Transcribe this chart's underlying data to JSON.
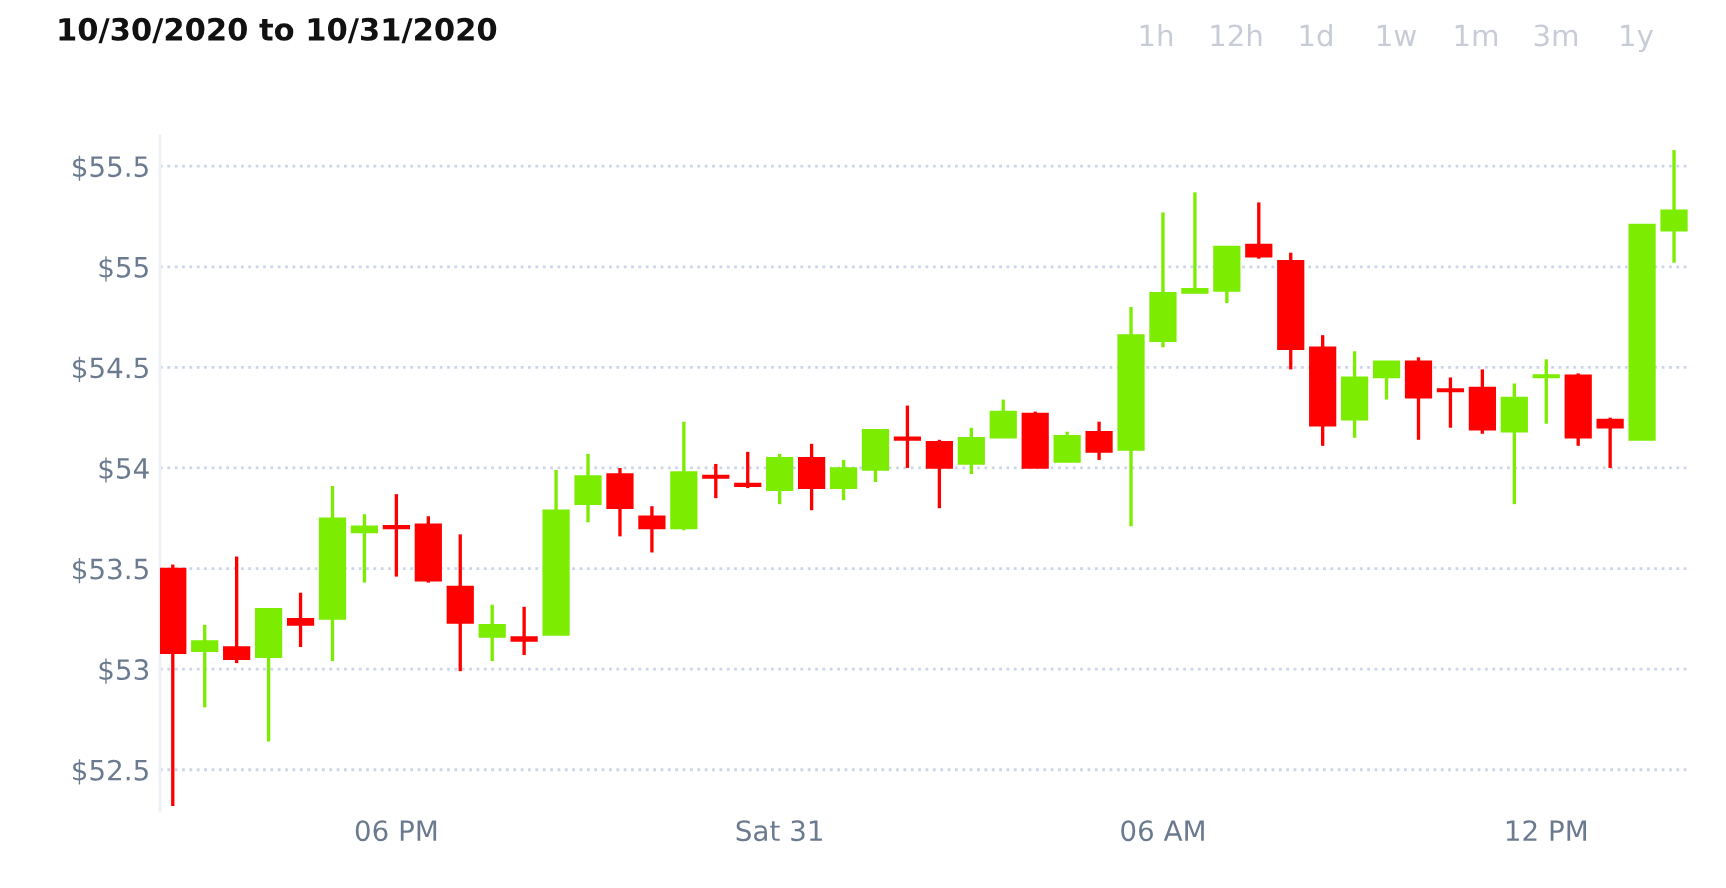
{
  "chart_data": {
    "type": "candlestick",
    "title": "10/30/2020 to 10/31/2020",
    "annotations": [
      "1h",
      "12h",
      "1d",
      "1w",
      "1m",
      "3m",
      "1y"
    ],
    "x": [
      "2020-10-30T14:30",
      "2020-10-30T15:00",
      "2020-10-30T15:30",
      "2020-10-30T16:00",
      "2020-10-30T16:30",
      "2020-10-30T17:00",
      "2020-10-30T17:30",
      "2020-10-30T18:00",
      "2020-10-30T18:30",
      "2020-10-30T19:00",
      "2020-10-30T19:30",
      "2020-10-30T20:00",
      "2020-10-30T20:30",
      "2020-10-30T21:00",
      "2020-10-30T21:30",
      "2020-10-30T22:00",
      "2020-10-30T22:30",
      "2020-10-30T23:00",
      "2020-10-30T23:30",
      "2020-10-31T00:00",
      "2020-10-31T00:30",
      "2020-10-31T01:00",
      "2020-10-31T01:30",
      "2020-10-31T02:00",
      "2020-10-31T02:30",
      "2020-10-31T03:00",
      "2020-10-31T03:30",
      "2020-10-31T04:00",
      "2020-10-31T04:30",
      "2020-10-31T05:00",
      "2020-10-31T05:30",
      "2020-10-31T06:00",
      "2020-10-31T06:30",
      "2020-10-31T07:00",
      "2020-10-31T07:30",
      "2020-10-31T08:00",
      "2020-10-31T08:30",
      "2020-10-31T09:00",
      "2020-10-31T09:30",
      "2020-10-31T10:00",
      "2020-10-31T10:30",
      "2020-10-31T11:00",
      "2020-10-31T11:30",
      "2020-10-31T12:00",
      "2020-10-31T12:30",
      "2020-10-31T13:00",
      "2020-10-31T13:30",
      "2020-10-31T14:00"
    ],
    "ohlc": [
      [
        53.5,
        53.52,
        52.32,
        53.08
      ],
      [
        53.09,
        53.22,
        52.81,
        53.14
      ],
      [
        53.11,
        53.56,
        53.03,
        53.05
      ],
      [
        53.06,
        53.3,
        52.64,
        53.3
      ],
      [
        53.25,
        53.38,
        53.11,
        53.22
      ],
      [
        53.25,
        53.91,
        53.04,
        53.75
      ],
      [
        53.68,
        53.77,
        53.43,
        53.71
      ],
      [
        53.71,
        53.87,
        53.46,
        53.7
      ],
      [
        53.72,
        53.76,
        53.43,
        53.44
      ],
      [
        53.41,
        53.67,
        52.99,
        53.23
      ],
      [
        53.16,
        53.32,
        53.04,
        53.22
      ],
      [
        53.16,
        53.31,
        53.07,
        53.14
      ],
      [
        53.17,
        53.99,
        53.17,
        53.79
      ],
      [
        53.82,
        54.07,
        53.73,
        53.96
      ],
      [
        53.97,
        54.0,
        53.66,
        53.8
      ],
      [
        53.76,
        53.81,
        53.58,
        53.7
      ],
      [
        53.7,
        54.23,
        53.69,
        53.98
      ],
      [
        53.96,
        54.02,
        53.85,
        53.95
      ],
      [
        53.92,
        54.08,
        53.9,
        53.91
      ],
      [
        53.89,
        54.07,
        53.82,
        54.05
      ],
      [
        54.05,
        54.12,
        53.79,
        53.9
      ],
      [
        53.9,
        54.04,
        53.84,
        54.0
      ],
      [
        53.99,
        54.19,
        53.93,
        54.19
      ],
      [
        54.15,
        54.31,
        54.0,
        54.14
      ],
      [
        54.13,
        54.14,
        53.8,
        54.0
      ],
      [
        54.02,
        54.2,
        53.97,
        54.15
      ],
      [
        54.15,
        54.34,
        54.15,
        54.28
      ],
      [
        54.27,
        54.28,
        54.0,
        54.0
      ],
      [
        54.03,
        54.18,
        54.03,
        54.16
      ],
      [
        54.18,
        54.23,
        54.04,
        54.08
      ],
      [
        54.09,
        54.8,
        53.71,
        54.66
      ],
      [
        54.63,
        55.27,
        54.6,
        54.87
      ],
      [
        54.87,
        55.37,
        54.87,
        54.89
      ],
      [
        54.88,
        55.1,
        54.82,
        55.1
      ],
      [
        55.11,
        55.32,
        55.04,
        55.05
      ],
      [
        55.03,
        55.07,
        54.49,
        54.59
      ],
      [
        54.6,
        54.66,
        54.11,
        54.21
      ],
      [
        54.24,
        54.58,
        54.15,
        54.45
      ],
      [
        54.45,
        54.53,
        54.34,
        54.53
      ],
      [
        54.53,
        54.55,
        54.14,
        54.35
      ],
      [
        54.39,
        54.45,
        54.2,
        54.38
      ],
      [
        54.4,
        54.49,
        54.17,
        54.19
      ],
      [
        54.18,
        54.42,
        53.82,
        54.35
      ],
      [
        54.45,
        54.54,
        54.22,
        54.46
      ],
      [
        54.46,
        54.47,
        54.11,
        54.15
      ],
      [
        54.24,
        54.25,
        54.0,
        54.2
      ],
      [
        54.14,
        55.21,
        54.14,
        55.21
      ],
      [
        55.18,
        55.58,
        55.02,
        55.28
      ]
    ],
    "colors": [
      "#ff0000",
      "#7ced00",
      "#ff0000",
      "#7ced00",
      "#ff0000",
      "#7ced00",
      "#7ced00",
      "#ff0000",
      "#ff0000",
      "#ff0000",
      "#7ced00",
      "#ff0000",
      "#7ced00",
      "#7ced00",
      "#ff0000",
      "#ff0000",
      "#7ced00",
      "#ff0000",
      "#ff0000",
      "#7ced00",
      "#ff0000",
      "#7ced00",
      "#7ced00",
      "#ff0000",
      "#ff0000",
      "#7ced00",
      "#7ced00",
      "#ff0000",
      "#7ced00",
      "#ff0000",
      "#7ced00",
      "#7ced00",
      "#7ced00",
      "#7ced00",
      "#ff0000",
      "#ff0000",
      "#ff0000",
      "#7ced00",
      "#7ced00",
      "#ff0000",
      "#ff0000",
      "#ff0000",
      "#7ced00",
      "#7ced00",
      "#ff0000",
      "#ff0000",
      "#7ced00",
      "#7ced00"
    ],
    "xlim": [
      "2020-10-30T14:18",
      "2020-10-31T14:15"
    ],
    "xticks": [
      {
        "value": "2020-10-30T18:00",
        "label": "06 PM"
      },
      {
        "value": "2020-10-31T00:00",
        "label": "Sat 31"
      },
      {
        "value": "2020-10-31T06:00",
        "label": "06 AM"
      },
      {
        "value": "2020-10-31T12:00",
        "label": "12 PM"
      }
    ],
    "ylim": [
      52.3,
      55.65
    ],
    "yticks": [
      {
        "value": 52.5,
        "label": "$52.5"
      },
      {
        "value": 53,
        "label": "$53"
      },
      {
        "value": 53.5,
        "label": "$53.5"
      },
      {
        "value": 54,
        "label": "$54"
      },
      {
        "value": 54.5,
        "label": "$54.5"
      },
      {
        "value": 55,
        "label": "$55"
      },
      {
        "value": 55.5,
        "label": "$55.5"
      }
    ],
    "grid": "y"
  }
}
